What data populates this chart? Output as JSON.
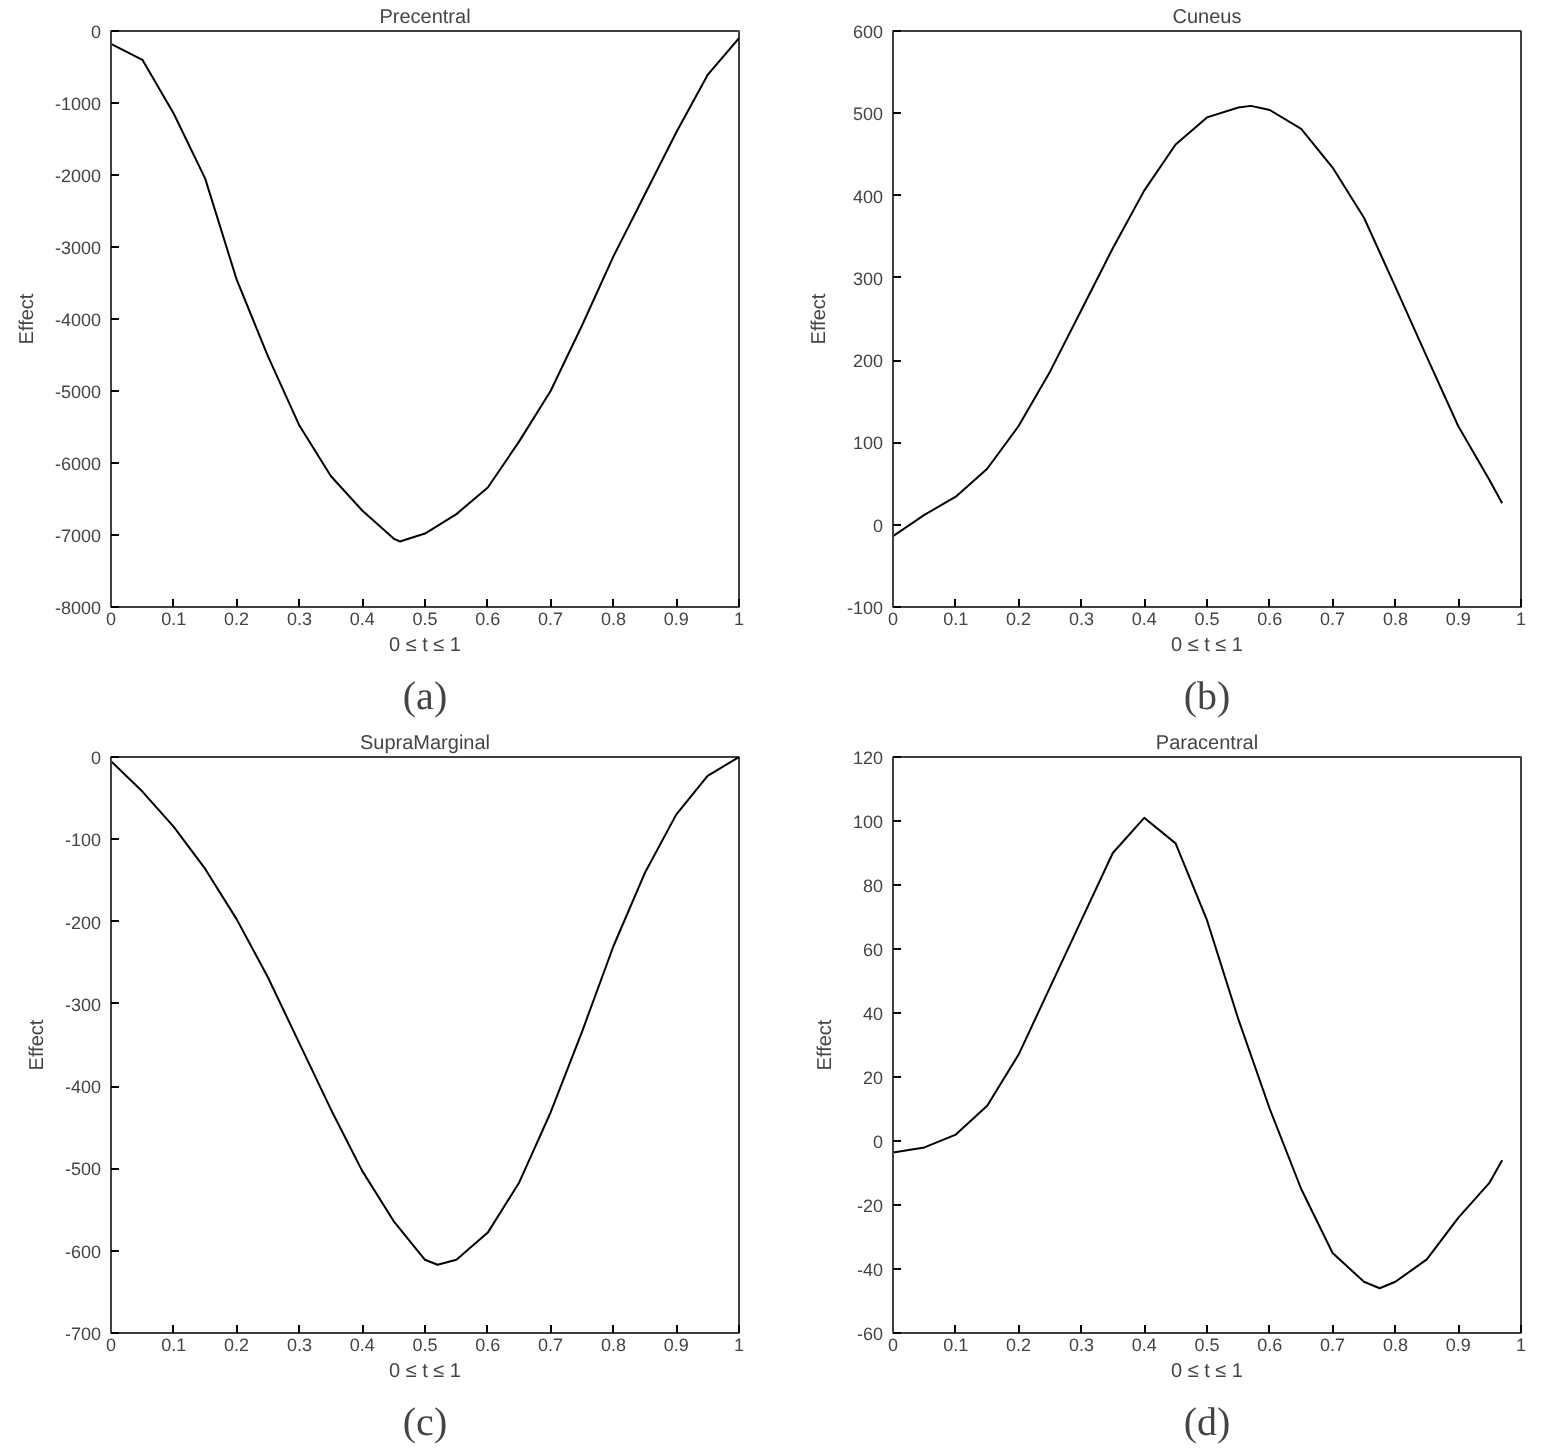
{
  "chart_data": [
    {
      "type": "line",
      "title": "Precentral",
      "xlabel": "0 ≤ t ≤ 1",
      "ylabel": "Effect",
      "annotations": [
        "(a)"
      ],
      "xlim": [
        0,
        1
      ],
      "ylim": [
        -8000,
        0
      ],
      "xticks": [
        0,
        0.1,
        0.2,
        0.3,
        0.4,
        0.5,
        0.6,
        0.7,
        0.8,
        0.9,
        1
      ],
      "yticks": [
        -8000,
        -7000,
        -6000,
        -5000,
        -4000,
        -3000,
        -2000,
        -1000,
        0
      ],
      "grid": false,
      "x": [
        0,
        0.05,
        0.1,
        0.15,
        0.2,
        0.25,
        0.3,
        0.35,
        0.4,
        0.45,
        0.46,
        0.5,
        0.55,
        0.6,
        0.65,
        0.7,
        0.75,
        0.8,
        0.85,
        0.9,
        0.95,
        1
      ],
      "series": [
        {
          "color": "#000000",
          "values": [
            -180,
            -400,
            -1150,
            -2050,
            -3450,
            -4520,
            -5480,
            -6180,
            -6660,
            -7050,
            -7090,
            -6980,
            -6710,
            -6340,
            -5700,
            -5000,
            -4090,
            -3130,
            -2270,
            -1410,
            -610,
            -100
          ]
        }
      ]
    },
    {
      "type": "line",
      "title": "Cuneus",
      "xlabel": "0 ≤ t ≤ 1",
      "ylabel": "Effect",
      "annotations": [
        "(b)"
      ],
      "xlim": [
        0,
        1
      ],
      "ylim": [
        -100,
        600
      ],
      "xticks": [
        0,
        0.1,
        0.2,
        0.3,
        0.4,
        0.5,
        0.6,
        0.7,
        0.8,
        0.9,
        1
      ],
      "yticks": [
        -100,
        0,
        100,
        200,
        300,
        400,
        500,
        600
      ],
      "grid": false,
      "x": [
        0,
        0.05,
        0.1,
        0.15,
        0.2,
        0.25,
        0.3,
        0.35,
        0.4,
        0.45,
        0.5,
        0.55,
        0.57,
        0.6,
        0.65,
        0.7,
        0.75,
        0.8,
        0.85,
        0.9,
        0.95,
        0.97
      ],
      "series": [
        {
          "color": "#000000",
          "values": [
            -14,
            12,
            34,
            68,
            120,
            186,
            261,
            336,
            406,
            462,
            495,
            507,
            509,
            504,
            481,
            434,
            373,
            289,
            204,
            120,
            54,
            26
          ]
        }
      ]
    },
    {
      "type": "line",
      "title": "SupraMarginal",
      "xlabel": "0 ≤ t ≤ 1",
      "ylabel": "Effect",
      "annotations": [
        "(c)"
      ],
      "xlim": [
        0,
        1
      ],
      "ylim": [
        -700,
        0
      ],
      "xticks": [
        0,
        0.1,
        0.2,
        0.3,
        0.4,
        0.5,
        0.6,
        0.7,
        0.8,
        0.9,
        1
      ],
      "yticks": [
        -700,
        -600,
        -500,
        -400,
        -300,
        -200,
        -100,
        0
      ],
      "grid": false,
      "x": [
        0,
        0.05,
        0.1,
        0.15,
        0.2,
        0.25,
        0.3,
        0.35,
        0.4,
        0.45,
        0.5,
        0.52,
        0.55,
        0.6,
        0.65,
        0.7,
        0.75,
        0.8,
        0.85,
        0.9,
        0.95,
        1
      ],
      "series": [
        {
          "color": "#000000",
          "values": [
            -5,
            -42,
            -85,
            -136,
            -197,
            -268,
            -348,
            -428,
            -503,
            -564,
            -611,
            -617,
            -611,
            -578,
            -517,
            -432,
            -334,
            -230,
            -141,
            -70,
            -23,
            0
          ]
        }
      ]
    },
    {
      "type": "line",
      "title": "Paracentral",
      "xlabel": "0 ≤ t ≤ 1",
      "ylabel": "Effect",
      "annotations": [
        "(d)"
      ],
      "xlim": [
        0,
        1
      ],
      "ylim": [
        -60,
        120
      ],
      "xticks": [
        0,
        0.1,
        0.2,
        0.3,
        0.4,
        0.5,
        0.6,
        0.7,
        0.8,
        0.9,
        1
      ],
      "yticks": [
        -60,
        -40,
        -20,
        0,
        20,
        40,
        60,
        80,
        100,
        120
      ],
      "grid": false,
      "x": [
        0,
        0.05,
        0.1,
        0.15,
        0.2,
        0.25,
        0.3,
        0.35,
        0.4,
        0.45,
        0.5,
        0.55,
        0.6,
        0.65,
        0.7,
        0.75,
        0.775,
        0.8,
        0.85,
        0.9,
        0.95,
        0.97
      ],
      "series": [
        {
          "color": "#000000",
          "values": [
            -3.6,
            -2,
            2,
            11,
            27,
            48,
            69,
            90,
            101,
            93,
            69,
            38,
            10,
            -15,
            -35,
            -44,
            -46,
            -44,
            -37,
            -24,
            -13,
            -6
          ]
        }
      ]
    }
  ]
}
